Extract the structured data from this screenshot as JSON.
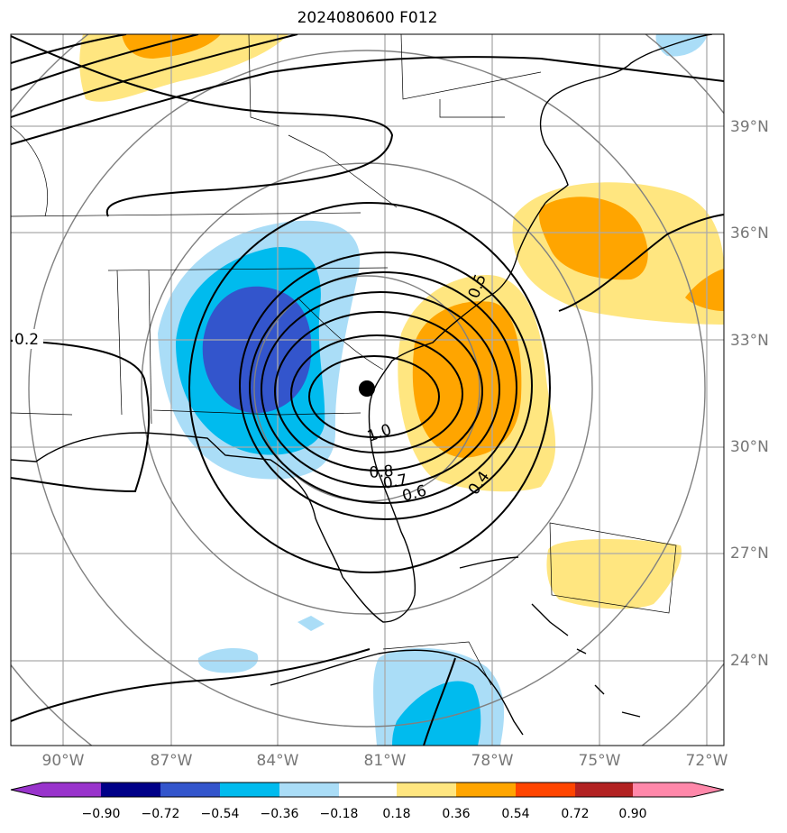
{
  "title": "2024080600 F012",
  "lon_ticks": [
    "90°W",
    "87°W",
    "84°W",
    "81°W",
    "78°W",
    "75°W",
    "72°W"
  ],
  "lat_ticks": [
    "39°N",
    "36°N",
    "33°N",
    "30°N",
    "27°N",
    "24°N"
  ],
  "colorbar": {
    "labels": [
      "−0.90",
      "−0.72",
      "−0.54",
      "−0.36",
      "−0.18",
      "0.18",
      "0.36",
      "0.54",
      "0.72",
      "0.90"
    ],
    "colors": [
      "#9933cc",
      "#000088",
      "#3355cc",
      "#00bbee",
      "#aaddf7",
      "#ffffff",
      "#ffe680",
      "#ffa500",
      "#ff4500",
      "#b22222",
      "#ff88aa"
    ]
  },
  "contour_labels": [
    "0.2",
    "0.4",
    "0.6",
    "0.7",
    "0.8",
    "1.0",
    "0.5"
  ],
  "storm_center_marker": "filled-black-dot"
}
